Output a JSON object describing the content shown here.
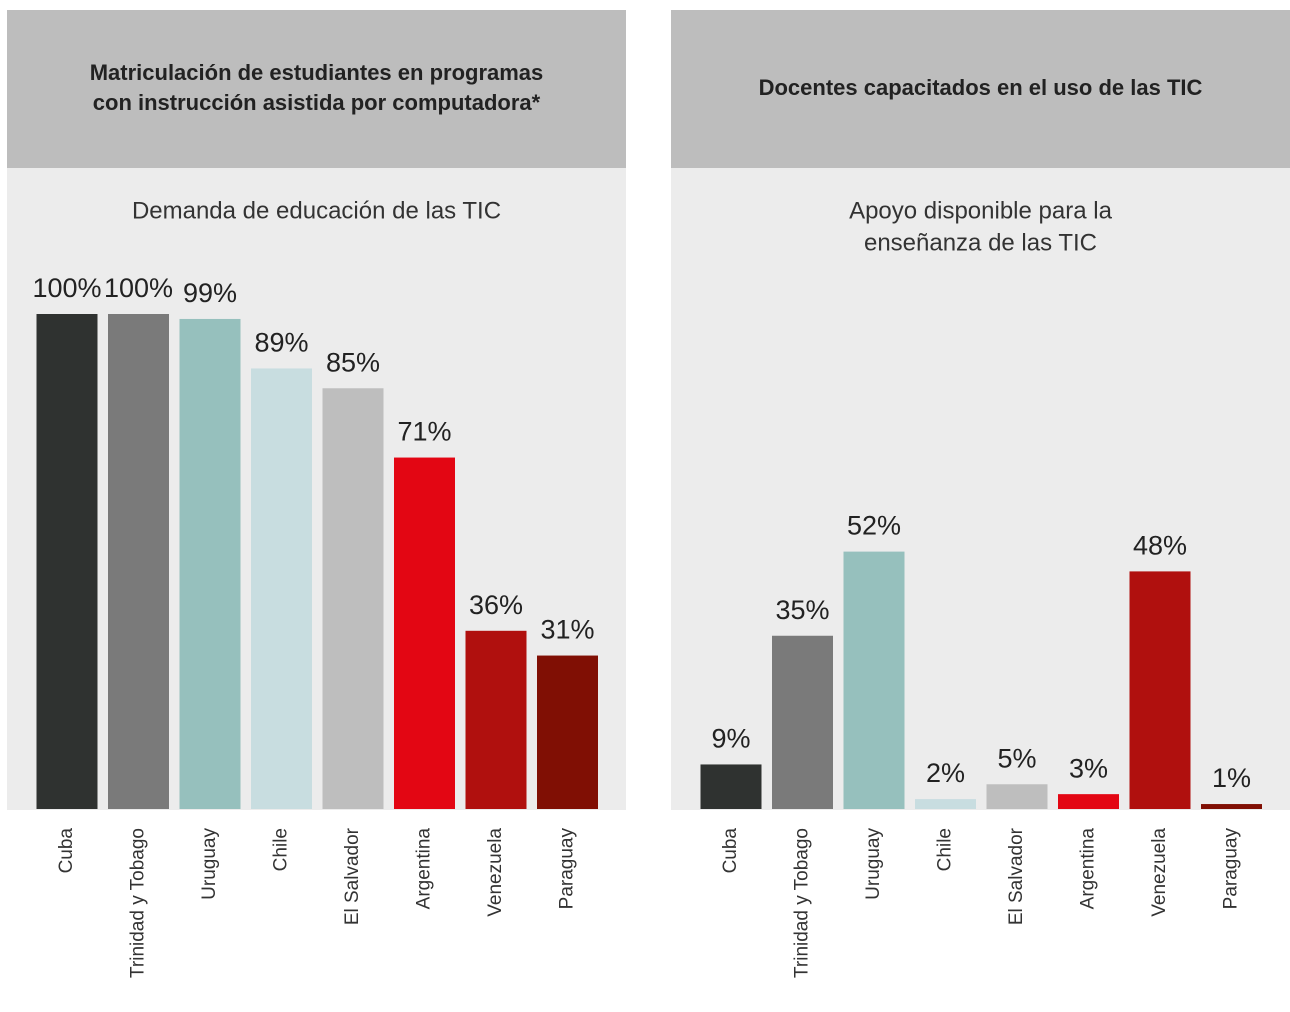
{
  "chart_data": [
    {
      "type": "bar",
      "title": [
        "Matriculación de estudiantes en programas",
        "con instrucción asistida por computadora*"
      ],
      "subtitle": [
        "Demanda de educación de las TIC"
      ],
      "categories": [
        "Cuba",
        "Trinidad y Tobago",
        "Uruguay",
        "Chile",
        "El Salvador",
        "Argentina",
        "Venezuela",
        "Paraguay"
      ],
      "values": [
        100,
        100,
        99,
        89,
        85,
        71,
        36,
        31
      ],
      "value_labels": [
        "100%",
        "100%",
        "99%",
        "89%",
        "85%",
        "71%",
        "36%",
        "31%"
      ],
      "colors": [
        "#2f3230",
        "#7a7a7a",
        "#96c0bd",
        "#c8dde0",
        "#bebebe",
        "#e30613",
        "#b0100e",
        "#800f04"
      ]
    },
    {
      "type": "bar",
      "title": [
        "Docentes capacitados en el uso de las TIC"
      ],
      "subtitle": [
        "Apoyo disponible para la",
        "enseñanza de las TIC"
      ],
      "categories": [
        "Cuba",
        "Trinidad y Tobago",
        "Uruguay",
        "Chile",
        "El Salvador",
        "Argentina",
        "Venezuela",
        "Paraguay"
      ],
      "values": [
        9,
        35,
        52,
        2,
        5,
        3,
        48,
        1
      ],
      "value_labels": [
        "9%",
        "35%",
        "52%",
        "2%",
        "5%",
        "3%",
        "48%",
        "1%"
      ],
      "colors": [
        "#2f3230",
        "#7a7a7a",
        "#96c0bd",
        "#c8dde0",
        "#bebebe",
        "#e30613",
        "#b0100e",
        "#800f04"
      ]
    }
  ]
}
